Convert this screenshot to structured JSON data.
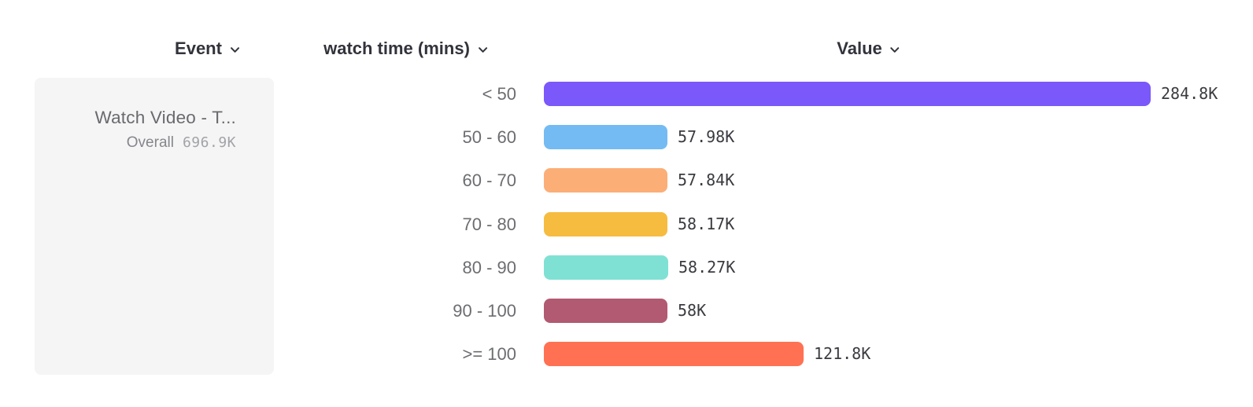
{
  "header": {
    "columns": [
      {
        "label": "Event"
      },
      {
        "label": "watch time (mins)"
      },
      {
        "label": "Value"
      }
    ]
  },
  "event_card": {
    "title": "Watch Video - T...",
    "overall_label": "Overall",
    "overall_value": "696.9K"
  },
  "colors": {
    "header_text": "#32333b",
    "row_label_text": "#6c6d71",
    "value_text": "#3a3b40",
    "card_background": "#f5f5f6",
    "page_background": "#ffffff"
  },
  "chart_data": {
    "type": "bar",
    "orientation": "horizontal",
    "title": "",
    "xlabel": "Value",
    "ylabel": "watch time (mins)",
    "grid": false,
    "legend": false,
    "categories": [
      "< 50",
      "50 - 60",
      "60 - 70",
      "70 - 80",
      "80 - 90",
      "90 - 100",
      ">= 100"
    ],
    "values": [
      284800,
      57980,
      57840,
      58170,
      58270,
      58000,
      121800
    ],
    "value_labels": [
      "284.8K",
      "57.98K",
      "57.84K",
      "58.17K",
      "58.27K",
      "58K",
      "121.8K"
    ],
    "bar_colors": [
      "#7b58fa",
      "#74bbf3",
      "#fcae77",
      "#f6bc40",
      "#7fe1d4",
      "#b25a72",
      "#ff7152"
    ],
    "xlim": [
      0,
      284800
    ]
  }
}
